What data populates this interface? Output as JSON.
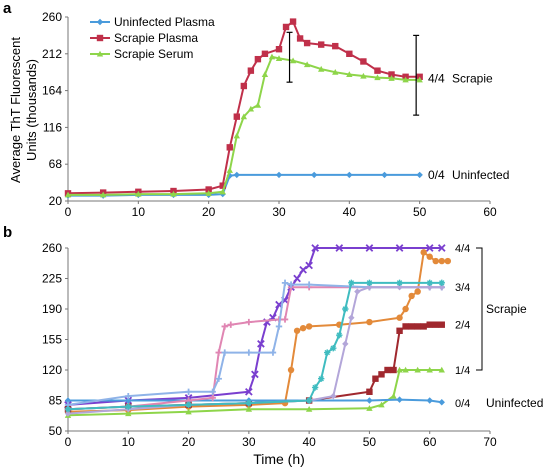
{
  "figure": {
    "panel_a_letter": "a",
    "panel_b_letter": "b",
    "shared_ylabel_line1": "Average ThT Fluorescent",
    "shared_ylabel_line2": "Units (thousands)"
  },
  "chart_data": [
    {
      "panel": "a",
      "type": "line",
      "title": "",
      "xlabel": "",
      "ylabel": "Average ThT Fluorescent Units (thousands)",
      "xlim": [
        0,
        60
      ],
      "ylim": [
        20,
        260
      ],
      "xticks": [
        0,
        10,
        20,
        30,
        40,
        50,
        60
      ],
      "yticks": [
        20,
        68,
        116,
        164,
        212,
        260
      ],
      "legend": {
        "placement": "top-left",
        "entries": [
          "Uninfected Plasma",
          "Scrapie Plasma",
          "Scrapie Serum"
        ]
      },
      "series": [
        {
          "name": "Uninfected Plasma",
          "color": "#4a9bdc",
          "marker": "diamond",
          "x": [
            0,
            5,
            10,
            15,
            20,
            22,
            23,
            24,
            30,
            35,
            40,
            45,
            50
          ],
          "y": [
            27,
            27,
            28,
            28,
            28,
            29,
            53,
            54,
            54,
            54,
            54,
            54,
            54
          ]
        },
        {
          "name": "Scrapie Plasma",
          "color": "#c0304a",
          "marker": "square",
          "x": [
            0,
            5,
            10,
            15,
            20,
            22,
            23,
            24,
            25,
            26,
            27,
            28,
            30,
            31,
            32,
            33,
            34,
            36,
            38,
            40,
            42,
            44,
            46,
            48,
            50
          ],
          "y": [
            30,
            31,
            32,
            33,
            35,
            40,
            90,
            130,
            170,
            190,
            205,
            212,
            218,
            247,
            254,
            232,
            226,
            224,
            222,
            212,
            202,
            190,
            185,
            182,
            182
          ]
        },
        {
          "name": "Scrapie Serum",
          "color": "#8ed54a",
          "marker": "triangle",
          "x": [
            0,
            5,
            10,
            15,
            20,
            22,
            23,
            24,
            25,
            26,
            27,
            28,
            29,
            30,
            32,
            34,
            36,
            38,
            40,
            42,
            44,
            46,
            48,
            50
          ],
          "y": [
            28,
            28,
            29,
            29,
            30,
            32,
            60,
            105,
            130,
            140,
            145,
            185,
            208,
            206,
            203,
            198,
            192,
            188,
            185,
            183,
            181,
            180,
            178,
            178
          ]
        }
      ],
      "error_bars": [
        {
          "x": 31.5,
          "low": 175,
          "high": 240
        },
        {
          "x": 49.5,
          "low": 132,
          "high": 236
        }
      ],
      "annotations": [
        {
          "fraction": "4/4",
          "label": "Scrapie",
          "y": 180
        },
        {
          "fraction": "0/4",
          "label": "Uninfected",
          "y": 54
        }
      ]
    },
    {
      "panel": "b",
      "type": "line",
      "title": "",
      "xlabel": "Time (h)",
      "ylabel": "",
      "xlim": [
        0,
        70
      ],
      "ylim": [
        50,
        260
      ],
      "xticks": [
        0,
        10,
        20,
        30,
        40,
        50,
        60,
        70
      ],
      "yticks": [
        50,
        85,
        120,
        155,
        190,
        225,
        260
      ],
      "legend": {
        "placement": "none",
        "entries": []
      },
      "series": [
        {
          "color": "#7a3fcf",
          "marker": "x",
          "x": [
            0,
            10,
            20,
            30,
            31,
            32,
            33,
            34,
            35,
            36,
            37,
            38,
            39,
            40,
            41,
            45,
            50,
            55,
            60,
            62
          ],
          "y": [
            80,
            85,
            88,
            95,
            115,
            150,
            175,
            180,
            195,
            200,
            215,
            225,
            235,
            240,
            260,
            260,
            260,
            260,
            260,
            260
          ]
        },
        {
          "color": "#e38a3a",
          "marker": "circle",
          "x": [
            0,
            10,
            20,
            30,
            36,
            37,
            38,
            39,
            40,
            45,
            50,
            55,
            56,
            57,
            58,
            59,
            60,
            61,
            62,
            63
          ],
          "y": [
            72,
            74,
            78,
            80,
            82,
            120,
            165,
            168,
            170,
            172,
            175,
            180,
            190,
            205,
            210,
            255,
            250,
            245,
            245,
            245
          ]
        },
        {
          "color": "#a0282e",
          "marker": "square",
          "x": [
            0,
            10,
            20,
            30,
            40,
            50,
            51,
            52,
            53,
            54,
            55,
            56,
            57,
            58,
            59,
            60,
            61,
            62
          ],
          "y": [
            75,
            78,
            80,
            82,
            85,
            95,
            110,
            115,
            120,
            120,
            165,
            170,
            170,
            170,
            170,
            172,
            172,
            172
          ]
        },
        {
          "color": "#8ed54a",
          "marker": "triangle",
          "x": [
            0,
            10,
            20,
            30,
            40,
            50,
            52,
            54,
            55,
            56,
            58,
            60,
            62
          ],
          "y": [
            68,
            70,
            72,
            75,
            75,
            76,
            80,
            90,
            120,
            120,
            120,
            120,
            120
          ]
        },
        {
          "color": "#4a9bdc",
          "marker": "diamond",
          "x": [
            0,
            10,
            20,
            30,
            40,
            50,
            55,
            60,
            62
          ],
          "y": [
            85,
            85,
            85,
            85,
            85,
            85,
            86,
            85,
            83
          ]
        },
        {
          "color": "#e086b3",
          "marker": "plus",
          "x": [
            0,
            10,
            20,
            24,
            25,
            26,
            27,
            30,
            35,
            36,
            37,
            40,
            50,
            60,
            62
          ],
          "y": [
            75,
            78,
            85,
            88,
            140,
            170,
            172,
            175,
            178,
            178,
            215,
            215,
            215,
            215,
            215
          ]
        },
        {
          "color": "#8fb3e8",
          "marker": "plus",
          "x": [
            0,
            10,
            20,
            24,
            25,
            26,
            30,
            34,
            35,
            36,
            37,
            40,
            50,
            60,
            62
          ],
          "y": [
            80,
            90,
            95,
            95,
            110,
            140,
            140,
            140,
            170,
            220,
            218,
            218,
            215,
            215,
            215
          ]
        },
        {
          "color": "#b3a6d9",
          "marker": "diamond",
          "x": [
            0,
            10,
            20,
            30,
            40,
            44,
            46,
            47,
            48,
            50,
            55,
            60,
            62
          ],
          "y": [
            70,
            75,
            80,
            82,
            85,
            90,
            150,
            180,
            210,
            215,
            215,
            215,
            215
          ]
        },
        {
          "color": "#3fbcc0",
          "marker": "asterisk",
          "x": [
            0,
            10,
            20,
            30,
            40,
            41,
            42,
            43,
            44,
            45,
            46,
            47,
            50,
            55,
            60,
            62
          ],
          "y": [
            75,
            78,
            80,
            82,
            85,
            100,
            110,
            140,
            145,
            160,
            190,
            220,
            220,
            220,
            220,
            220
          ]
        }
      ],
      "annotations": [
        {
          "label": "4/4",
          "y": 260
        },
        {
          "label": "3/4",
          "y": 215
        },
        {
          "label": "2/4",
          "y": 172
        },
        {
          "label": "1/4",
          "y": 120
        },
        {
          "label": "0/4",
          "y": 82
        },
        {
          "label": "Scrapie",
          "y": 190
        },
        {
          "label": "Uninfected",
          "y": 82
        }
      ]
    }
  ]
}
